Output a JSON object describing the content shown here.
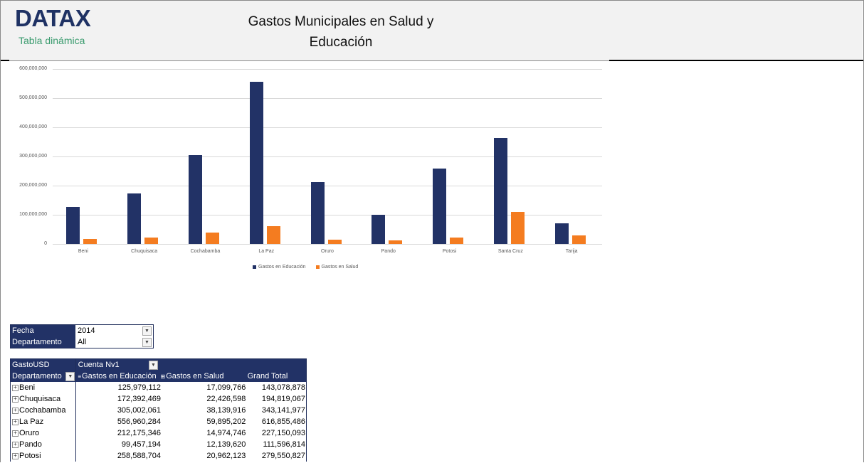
{
  "header": {
    "logo": "DATAX",
    "subtitle": "Tabla dinámica",
    "title_line1": "Gastos Municipales en Salud y",
    "title_line2": "Educación"
  },
  "colors": {
    "education": "#223266",
    "health": "#f47c20",
    "header_bg": "#f2f2f2",
    "brand": "#1f3264",
    "subtitle": "#3a9b6e"
  },
  "chart_data": {
    "type": "bar",
    "title": "",
    "xlabel": "",
    "ylabel": "",
    "ylim": [
      0,
      600000000
    ],
    "yticks": [
      "0",
      "100,000,000",
      "200,000,000",
      "300,000,000",
      "400,000,000",
      "500,000,000",
      "600,000,000"
    ],
    "grid": true,
    "legend_position": "bottom",
    "categories": [
      "Beni",
      "Chuquisaca",
      "Cochabamba",
      "La Paz",
      "Oruro",
      "Pando",
      "Potosi",
      "Santa Cruz",
      "Tarija"
    ],
    "series": [
      {
        "name": "Gastos en Educación",
        "color": "#223266",
        "values": [
          125979112,
          172392469,
          305002061,
          556960284,
          212175346,
          99457194,
          258588704,
          363000000,
          71000000
        ]
      },
      {
        "name": "Gastos en Salud",
        "color": "#f47c20",
        "values": [
          17099766,
          22426598,
          38139916,
          59895202,
          14974746,
          12139620,
          20962123,
          110000000,
          30000000
        ]
      }
    ]
  },
  "filters": [
    {
      "label": "Fecha",
      "value": "2014",
      "icon": "filter-dropdown-icon"
    },
    {
      "label": "Departamento",
      "value": "All",
      "icon": "dropdown-icon"
    }
  ],
  "pivot": {
    "header_row1": {
      "c1": "GastoUSD",
      "c2": "Cuenta Nv1"
    },
    "header_row2": {
      "c1": "Departamento",
      "c2": "Gastos en Educación",
      "c3": "Gastos en Salud",
      "c4": "Grand Total"
    },
    "rows": [
      {
        "dept": "Beni",
        "edu": "125,979,112",
        "salud": "17,099,766",
        "total": "143,078,878"
      },
      {
        "dept": "Chuquisaca",
        "edu": "172,392,469",
        "salud": "22,426,598",
        "total": "194,819,067"
      },
      {
        "dept": "Cochabamba",
        "edu": "305,002,061",
        "salud": "38,139,916",
        "total": "343,141,977"
      },
      {
        "dept": "La Paz",
        "edu": "556,960,284",
        "salud": "59,895,202",
        "total": "616,855,486"
      },
      {
        "dept": "Oruro",
        "edu": "212,175,346",
        "salud": "14,974,746",
        "total": "227,150,093"
      },
      {
        "dept": "Pando",
        "edu": "99,457,194",
        "salud": "12,139,620",
        "total": "111,596,814"
      },
      {
        "dept": "Potosi",
        "edu": "258,588,704",
        "salud": "20,962,123",
        "total": "279,550,827"
      }
    ]
  }
}
